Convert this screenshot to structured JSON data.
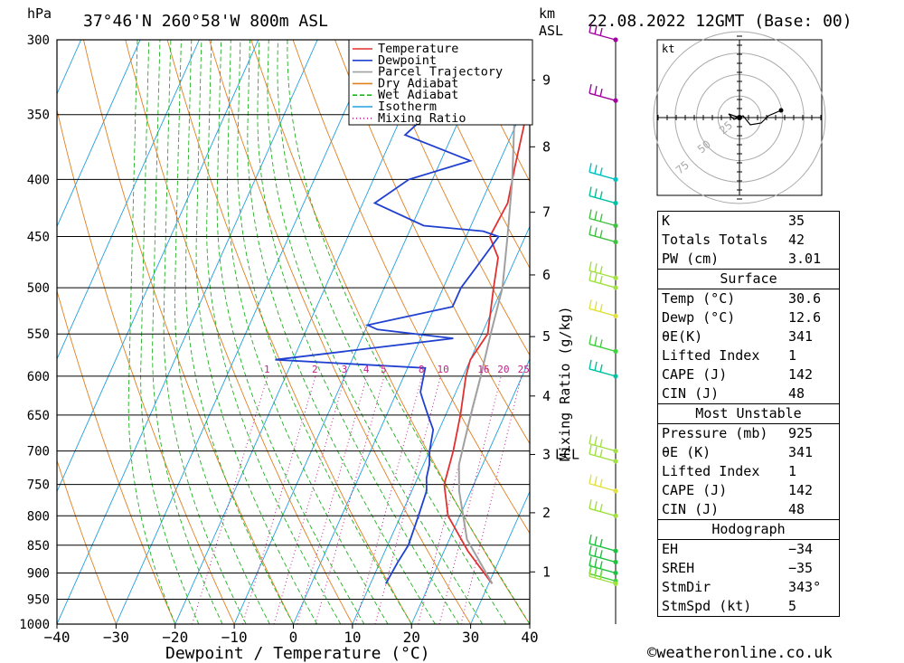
{
  "header": {
    "location": "37°46'N 260°58'W 800m ASL",
    "datetime": "22.08.2022 12GMT (Base: 00)",
    "hpa_label": "hPa",
    "km_label": "km",
    "asl_label": "ASL",
    "footer": "©weatheronline.co.uk"
  },
  "chart_data": {
    "type": "line",
    "title": "",
    "xlabel": "Dewpoint / Temperature (°C)",
    "ylabel": "hPa",
    "secondary_ylabel": "Mixing Ratio (g/kg)",
    "xlim": [
      -40,
      40
    ],
    "ylim": [
      1000,
      300
    ],
    "x_ticks": [
      -40,
      -30,
      -20,
      -10,
      0,
      10,
      20,
      30,
      40
    ],
    "pressure_levels": [
      300,
      350,
      400,
      450,
      500,
      550,
      600,
      650,
      700,
      750,
      800,
      850,
      900,
      950,
      1000
    ],
    "km_ticks": [
      1,
      2,
      3,
      4,
      5,
      6,
      7,
      8,
      9
    ],
    "lcl_label": "LCL",
    "mixing_ratio_labels": [
      "1",
      "2",
      "3",
      "4",
      "5",
      "8",
      "10",
      "16",
      "20",
      "25"
    ],
    "legend": [
      "Temperature",
      "Dewpoint",
      "Parcel Trajectory",
      "Dry Adiabat",
      "Wet Adiabat",
      "Isotherm",
      "Mixing Ratio"
    ],
    "legend_position": "top-right",
    "colors": {
      "temperature": "#e03030",
      "dewpoint": "#2040d0",
      "parcel": "#a0a0a0",
      "dry_adiabat": "#e08020",
      "wet_adiabat": "#20b020",
      "isotherm": "#20a0e0",
      "mixing_ratio": "#c0208a"
    },
    "series": [
      {
        "name": "Temperature",
        "points": [
          [
            30.6,
            920
          ],
          [
            29.5,
            910
          ],
          [
            24,
            860
          ],
          [
            18,
            800
          ],
          [
            15,
            750
          ],
          [
            14,
            700
          ],
          [
            12.5,
            650
          ],
          [
            10.5,
            600
          ],
          [
            10,
            580
          ],
          [
            11,
            550
          ],
          [
            8.5,
            500
          ],
          [
            7,
            470
          ],
          [
            4,
            450
          ],
          [
            4.5,
            420
          ],
          [
            3,
            390
          ],
          [
            1,
            350
          ],
          [
            -2,
            320
          ],
          [
            -4,
            300
          ]
        ]
      },
      {
        "name": "Dewpoint",
        "points": [
          [
            12.6,
            920
          ],
          [
            13,
            880
          ],
          [
            13.5,
            850
          ],
          [
            13,
            800
          ],
          [
            12.5,
            760
          ],
          [
            11.5,
            740
          ],
          [
            11,
            720
          ],
          [
            10,
            700
          ],
          [
            9,
            670
          ],
          [
            7,
            650
          ],
          [
            5,
            630
          ],
          [
            4,
            620
          ],
          [
            3,
            590
          ],
          [
            -23,
            580
          ],
          [
            5.5,
            555
          ],
          [
            -8,
            545
          ],
          [
            -10,
            540
          ],
          [
            3,
            520
          ],
          [
            3,
            500
          ],
          [
            4,
            480
          ],
          [
            5.5,
            450
          ],
          [
            2.5,
            445
          ],
          [
            -8,
            440
          ],
          [
            -18,
            420
          ],
          [
            -14,
            400
          ],
          [
            -5,
            385
          ],
          [
            -18,
            365
          ],
          [
            -15,
            345
          ],
          [
            -7,
            330
          ],
          [
            0.5,
            310
          ],
          [
            -2,
            303
          ]
        ]
      },
      {
        "name": "Parcel Trajectory",
        "points": [
          [
            30.6,
            920
          ],
          [
            23,
            840
          ],
          [
            18,
            760
          ],
          [
            16,
            720
          ],
          [
            15,
            680
          ],
          [
            14,
            640
          ],
          [
            13,
            600
          ],
          [
            11.5,
            550
          ],
          [
            10,
            500
          ],
          [
            7,
            450
          ],
          [
            3.5,
            400
          ],
          [
            -1,
            350
          ],
          [
            -6,
            300
          ]
        ]
      }
    ]
  },
  "hodograph": {
    "unit": "kt",
    "ring_labels": [
      "25",
      "50",
      "75"
    ]
  },
  "indices": [
    {
      "label": "K",
      "value": "35"
    },
    {
      "label": "Totals Totals",
      "value": "42"
    },
    {
      "label": "PW (cm)",
      "value": "3.01"
    }
  ],
  "surface": {
    "title": "Surface",
    "rows": [
      {
        "label": "Temp (°C)",
        "value": "30.6"
      },
      {
        "label": "Dewp (°C)",
        "value": "12.6"
      },
      {
        "label": "θE(K)",
        "value": "341"
      },
      {
        "label": "Lifted Index",
        "value": "1"
      },
      {
        "label": "CAPE (J)",
        "value": "142"
      },
      {
        "label": "CIN (J)",
        "value": "48"
      }
    ]
  },
  "most_unstable": {
    "title": "Most Unstable",
    "rows": [
      {
        "label": "Pressure (mb)",
        "value": "925"
      },
      {
        "label": "θE (K)",
        "value": "341"
      },
      {
        "label": "Lifted Index",
        "value": "1"
      },
      {
        "label": "CAPE (J)",
        "value": "142"
      },
      {
        "label": "CIN (J)",
        "value": "48"
      }
    ]
  },
  "hodograph_table": {
    "title": "Hodograph",
    "rows": [
      {
        "label": "EH",
        "value": "−34"
      },
      {
        "label": "SREH",
        "value": "−35"
      },
      {
        "label": "StmDir",
        "value": "343°"
      },
      {
        "label": "StmSpd (kt)",
        "value": "5"
      }
    ]
  }
}
